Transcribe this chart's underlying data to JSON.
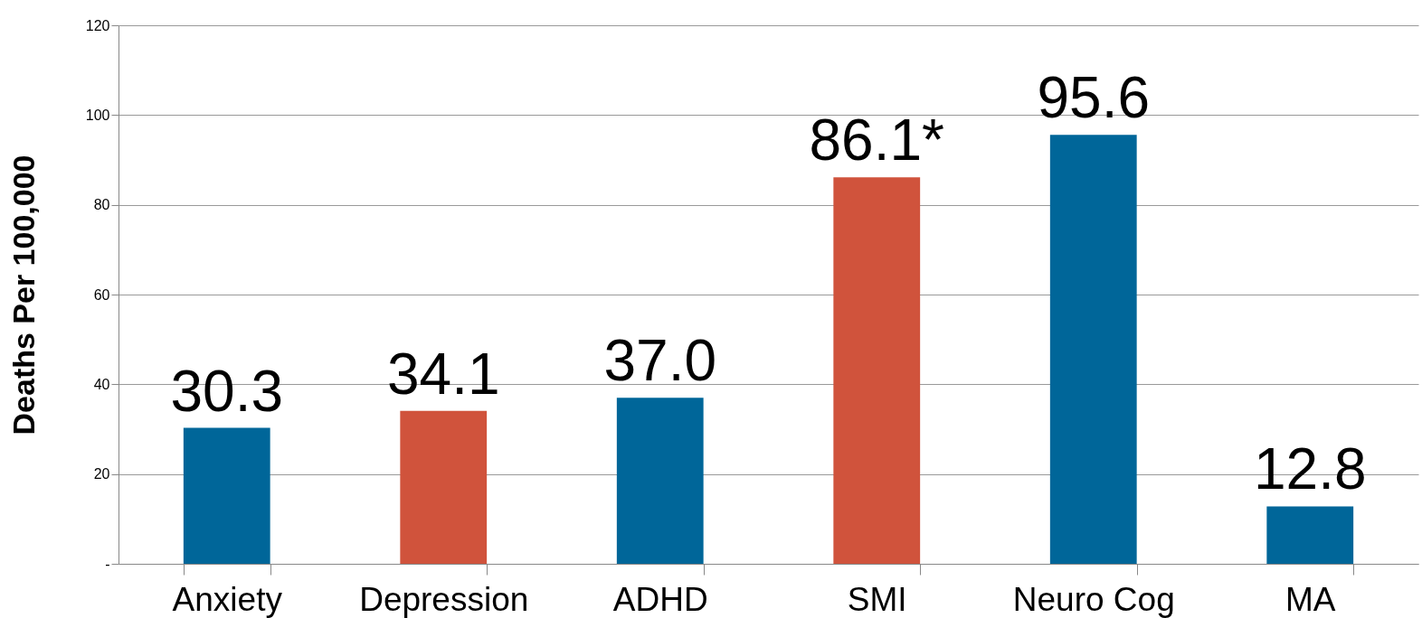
{
  "chart_data": {
    "type": "bar",
    "ylabel": "Deaths Per 100,000",
    "categories": [
      "Anxiety",
      "Depression",
      "ADHD",
      "SMI",
      "Neuro Cog",
      "MA"
    ],
    "values": [
      30.3,
      34.1,
      37.0,
      86.1,
      95.6,
      12.8
    ],
    "value_labels": [
      "30.3",
      "34.1",
      "37.0",
      "86.1*",
      "95.6",
      "12.8"
    ],
    "colors": [
      "#006699",
      "#d0533c",
      "#006699",
      "#d0533c",
      "#006699",
      "#006699"
    ],
    "ylim": [
      0,
      120
    ],
    "yticks": [
      {
        "value": 0,
        "label": "-"
      },
      20,
      40,
      60,
      80,
      100,
      120
    ],
    "grid": "y"
  }
}
